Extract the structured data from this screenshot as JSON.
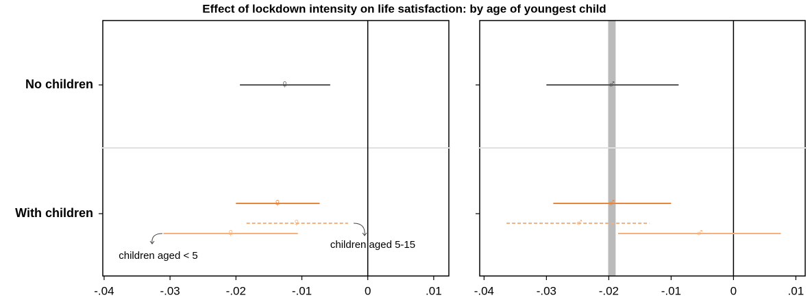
{
  "chart_data": {
    "type": "coefplot",
    "title": "Effect of lockdown intensity on life satisfaction: by age of youngest child",
    "categories": [
      "No children",
      "With children"
    ],
    "panels": [
      {
        "marker": "♀",
        "xlim": [
          -0.0402,
          0.0123
        ],
        "xticks": [
          {
            "value": -0.04,
            "label": "-.04"
          },
          {
            "value": -0.03,
            "label": "-.03"
          },
          {
            "value": -0.02,
            "label": "-.02"
          },
          {
            "value": -0.01,
            "label": "-.01"
          },
          0,
          {
            "value": 0.01,
            "label": ".01"
          }
        ],
        "series": [
          {
            "color": "#555555",
            "dashed": false,
            "values": [
              -0.0126,
              null
            ],
            "lower": [
              -0.0194,
              null
            ],
            "upper": [
              -0.0057,
              null
            ]
          },
          {
            "color": "#e8853d",
            "dashed": false,
            "values": [
              null,
              -0.0137
            ],
            "lower": [
              null,
              -0.02
            ],
            "upper": [
              null,
              -0.0073
            ]
          },
          {
            "color": "#f6b07c",
            "dashed": true,
            "values": [
              null,
              -0.0108
            ],
            "lower": [
              null,
              -0.0184
            ],
            "upper": [
              null,
              -0.003
            ]
          },
          {
            "color": "#f6b07c",
            "dashed": false,
            "values": [
              null,
              -0.0208
            ],
            "lower": [
              null,
              -0.031
            ],
            "upper": [
              null,
              -0.0106
            ]
          }
        ],
        "annotations": [
          "children aged < 5",
          "children aged 5-15"
        ]
      },
      {
        "marker": "♂",
        "xlim": [
          -0.0407,
          0.0115
        ],
        "xticks": [
          {
            "value": -0.04,
            "label": "-.04"
          },
          {
            "value": -0.03,
            "label": "-.03"
          },
          {
            "value": -0.02,
            "label": "-.02"
          },
          {
            "value": -0.01,
            "label": "-.01"
          },
          0,
          {
            "value": 0.01,
            "label": ".01"
          }
        ],
        "band": [
          -0.0201,
          -0.0189
        ],
        "series": [
          {
            "color": "#555555",
            "dashed": false,
            "values": [
              -0.0195,
              null
            ],
            "lower": [
              -0.03,
              null
            ],
            "upper": [
              -0.0088,
              null
            ]
          },
          {
            "color": "#e8853d",
            "dashed": false,
            "values": [
              null,
              -0.0195
            ],
            "lower": [
              null,
              -0.0289
            ],
            "upper": [
              null,
              -0.01
            ]
          },
          {
            "color": "#f6b07c",
            "dashed": true,
            "values": [
              null,
              -0.0247
            ],
            "lower": [
              null,
              -0.0364
            ],
            "upper": [
              null,
              -0.0135
            ]
          },
          {
            "color": "#f6b07c",
            "dashed": false,
            "values": [
              null,
              -0.0054
            ],
            "lower": [
              null,
              -0.0185
            ],
            "upper": [
              null,
              0.0076
            ]
          }
        ]
      }
    ]
  }
}
